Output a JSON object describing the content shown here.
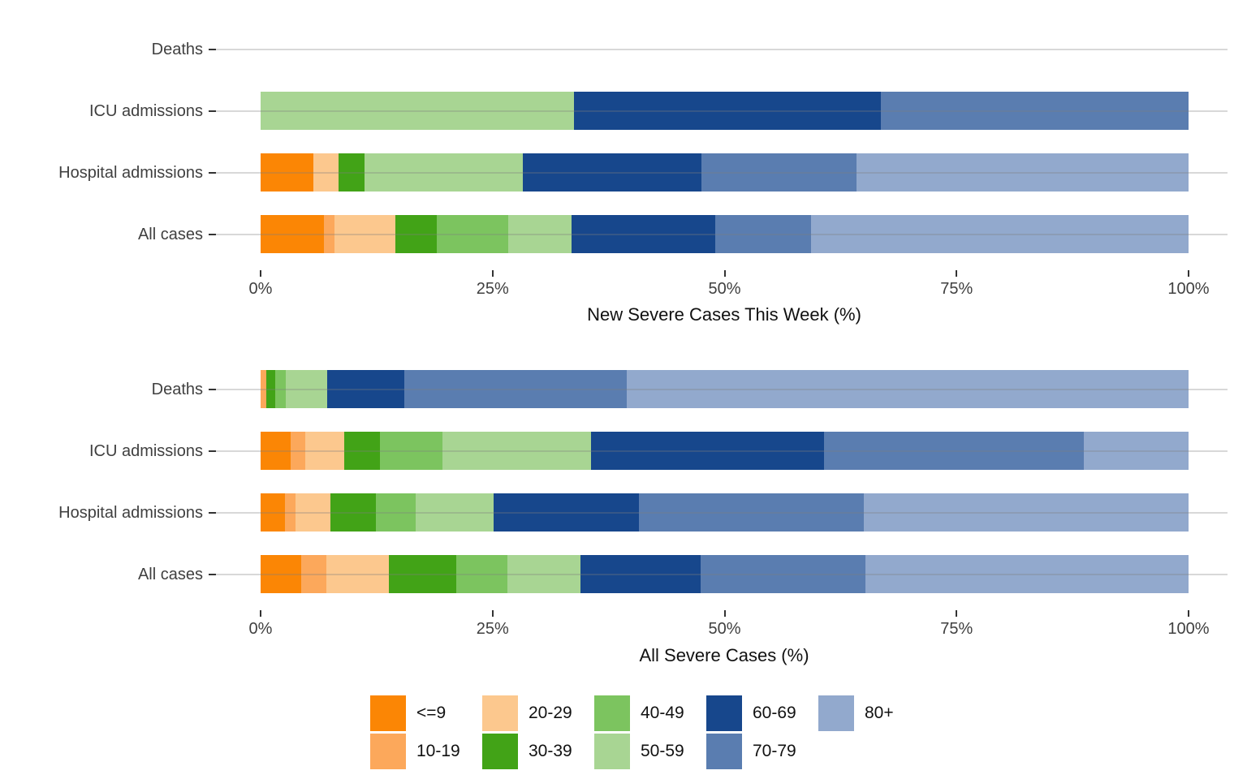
{
  "chart_data": [
    {
      "type": "bar",
      "orientation": "horizontal",
      "stacked": true,
      "title": "",
      "xlabel": "New Severe Cases This Week (%)",
      "ylabel": "",
      "xlim": [
        0,
        100
      ],
      "x_tick_labels": [
        "0%",
        "25%",
        "50%",
        "75%",
        "100%"
      ],
      "x_tick_values": [
        0,
        25,
        50,
        75,
        100
      ],
      "grid": "horizontal",
      "categories": [
        "Deaths",
        "ICU admissions",
        "Hospital admissions",
        "All cases"
      ],
      "series": [
        {
          "name": "<=9",
          "values": [
            0,
            0,
            5.7,
            6.8
          ]
        },
        {
          "name": "10-19",
          "values": [
            0,
            0,
            0,
            1.2
          ]
        },
        {
          "name": "20-29",
          "values": [
            0,
            0,
            2.7,
            6.5
          ]
        },
        {
          "name": "30-39",
          "values": [
            0,
            0,
            2.8,
            4.5
          ]
        },
        {
          "name": "40-49",
          "values": [
            0,
            0,
            0,
            7.7
          ]
        },
        {
          "name": "50-59",
          "values": [
            0,
            33.8,
            17.1,
            6.8
          ]
        },
        {
          "name": "60-69",
          "values": [
            0,
            33.0,
            19.2,
            15.5
          ]
        },
        {
          "name": "70-79",
          "values": [
            0,
            33.2,
            16.7,
            10.3
          ]
        },
        {
          "name": "80+",
          "values": [
            0,
            0,
            35.8,
            40.7
          ]
        }
      ]
    },
    {
      "type": "bar",
      "orientation": "horizontal",
      "stacked": true,
      "title": "",
      "xlabel": "All Severe Cases (%)",
      "ylabel": "",
      "xlim": [
        0,
        100
      ],
      "x_tick_labels": [
        "0%",
        "25%",
        "50%",
        "75%",
        "100%"
      ],
      "x_tick_values": [
        0,
        25,
        50,
        75,
        100
      ],
      "grid": "horizontal",
      "categories": [
        "Deaths",
        "ICU admissions",
        "Hospital admissions",
        "All cases"
      ],
      "series": [
        {
          "name": "<=9",
          "values": [
            0,
            3.2,
            2.6,
            4.4
          ]
        },
        {
          "name": "10-19",
          "values": [
            0.6,
            1.6,
            1.2,
            2.7
          ]
        },
        {
          "name": "20-29",
          "values": [
            0,
            4.2,
            3.7,
            6.7
          ]
        },
        {
          "name": "30-39",
          "values": [
            1.0,
            3.9,
            4.9,
            7.3
          ]
        },
        {
          "name": "40-49",
          "values": [
            1.1,
            6.7,
            4.3,
            5.5
          ]
        },
        {
          "name": "50-59",
          "values": [
            4.5,
            16.0,
            8.4,
            7.9
          ]
        },
        {
          "name": "60-69",
          "values": [
            8.3,
            25.1,
            15.7,
            12.9
          ]
        },
        {
          "name": "70-79",
          "values": [
            24.0,
            28.0,
            24.2,
            17.8
          ]
        },
        {
          "name": "80+",
          "values": [
            60.5,
            11.3,
            35.0,
            34.8
          ]
        }
      ]
    }
  ],
  "legend": {
    "position": "bottom",
    "entries": [
      {
        "label": "<=9",
        "color": "#FB8605"
      },
      {
        "label": "10-19",
        "color": "#FCA85B"
      },
      {
        "label": "20-29",
        "color": "#FCC88E"
      },
      {
        "label": "30-39",
        "color": "#42A317"
      },
      {
        "label": "40-49",
        "color": "#7CC45F"
      },
      {
        "label": "50-59",
        "color": "#A8D593"
      },
      {
        "label": "60-69",
        "color": "#17478C"
      },
      {
        "label": "70-79",
        "color": "#5A7DB0"
      },
      {
        "label": "80+",
        "color": "#92A9CD"
      }
    ]
  },
  "style_colors": {
    "background": "#FFFFFF",
    "gridline": "#D3D3D3",
    "axis_text": "#404040",
    "tick_mark": "#333333"
  }
}
